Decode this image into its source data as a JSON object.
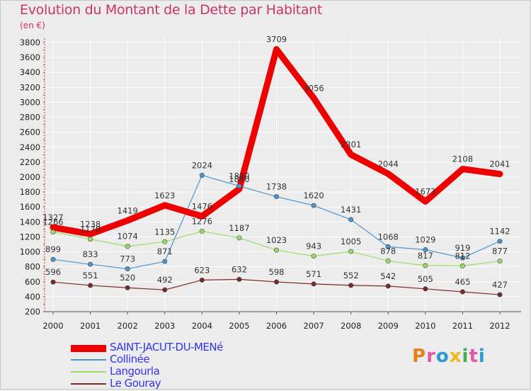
{
  "header": {
    "title": "Evolution du Montant de la Dette par Habitant",
    "subtitle": "(en €)"
  },
  "logo": {
    "text": "Proxiti",
    "colors": [
      "#e8801a",
      "#e05aa0",
      "#2a9ad6",
      "#f0b81a",
      "#3fb04a",
      "#e05aa0",
      "#2a9ad6"
    ]
  },
  "chart_data": {
    "type": "line",
    "x": [
      "2000",
      "2001",
      "2002",
      "2003",
      "2004",
      "2005",
      "2006",
      "2007",
      "2008",
      "2009",
      "2010",
      "2011",
      "2012"
    ],
    "yticks": [
      200,
      400,
      600,
      800,
      1000,
      1200,
      1400,
      1600,
      1800,
      2000,
      2200,
      2400,
      2600,
      2800,
      3000,
      3200,
      3400,
      3600,
      3800
    ],
    "ylim": [
      200,
      3800
    ],
    "grid": true,
    "legend": "bottom-left",
    "series": [
      {
        "name": "SAINT-JACUT-DU-MENé",
        "color": "#ee0000",
        "width": 9,
        "labels": [
          "1327",
          "1238",
          "1419",
          "1623",
          "1476",
          "1840",
          "3709",
          "3056",
          "2301",
          "2044",
          "1673",
          "2108",
          "2041"
        ],
        "values": [
          1327,
          1238,
          1419,
          1623,
          1476,
          1840,
          3709,
          3056,
          2301,
          2044,
          1673,
          2108,
          2041
        ]
      },
      {
        "name": "Collinée",
        "color": "#4f95cc",
        "width": 1.2,
        "labels": [
          "899",
          "833",
          "773",
          "871",
          "2024",
          "1880",
          "1738",
          "1620",
          "1431",
          "1068",
          "1029",
          "919",
          "1142"
        ],
        "values": [
          899,
          833,
          773,
          871,
          2024,
          1880,
          1738,
          1620,
          1431,
          1068,
          1029,
          919,
          1142
        ]
      },
      {
        "name": "Langourla",
        "color": "#99dd66",
        "width": 1.2,
        "labels": [
          "1266",
          "1170",
          "1074",
          "1135",
          "1276",
          "1187",
          "1023",
          "943",
          "1005",
          "878",
          "817",
          "812",
          "877"
        ],
        "values": [
          1266,
          1170,
          1074,
          1135,
          1276,
          1187,
          1023,
          943,
          1005,
          878,
          817,
          812,
          877
        ]
      },
      {
        "name": "Le Gouray",
        "color": "#7a2a2a",
        "width": 1.2,
        "labels": [
          "596",
          "551",
          "520",
          "492",
          "623",
          "632",
          "598",
          "571",
          "552",
          "542",
          "505",
          "465",
          "427"
        ],
        "values": [
          596,
          551,
          520,
          492,
          623,
          632,
          598,
          571,
          552,
          542,
          505,
          465,
          427
        ]
      }
    ]
  }
}
